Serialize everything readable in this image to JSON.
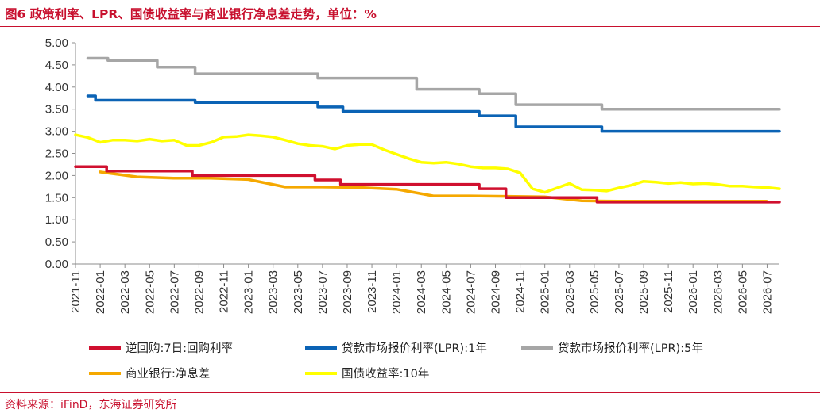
{
  "header": {
    "title": "图6 政策利率、LPR、国债收益率与商业银行净息差走势，单位：%"
  },
  "footer": {
    "source": "资料来源：iFinD，东海证券研究所"
  },
  "chart_data": {
    "type": "line",
    "title": "图6 政策利率、LPR、国债收益率与商业银行净息差走势，单位：%",
    "xlabel": "",
    "ylabel": "",
    "ylim": [
      0,
      5
    ],
    "yticks": [
      0,
      0.5,
      1,
      1.5,
      2,
      2.5,
      3,
      3.5,
      4,
      4.5,
      5
    ],
    "ytick_labels": [
      "0.00",
      "0.50",
      "1.00",
      "1.50",
      "2.00",
      "2.50",
      "3.00",
      "3.50",
      "4.00",
      "4.50",
      "5.00"
    ],
    "xlim": [
      "2021-11",
      "2026-08"
    ],
    "xtick_labels": [
      "2021-11",
      "2022-01",
      "2022-03",
      "2022-05",
      "2022-07",
      "2022-09",
      "2022-11",
      "2023-01",
      "2023-03",
      "2023-05",
      "2023-07",
      "2023-09",
      "2023-11",
      "2024-01",
      "2024-03",
      "2024-05",
      "2024-07",
      "2024-09",
      "2024-11",
      "2025-01",
      "2025-03",
      "2025-05",
      "2025-07",
      "2025-09",
      "2025-11",
      "2026-01",
      "2026-03",
      "2026-05",
      "2026-07"
    ],
    "grid": false,
    "legend_position": "bottom",
    "series": [
      {
        "name": "逆回购:7日:回购利率",
        "color": "#d0102f",
        "step": true,
        "points": [
          [
            "2021-11-01",
            2.2
          ],
          [
            "2022-01-17",
            2.1
          ],
          [
            "2022-08-15",
            2.0
          ],
          [
            "2023-06-13",
            1.9
          ],
          [
            "2023-08-15",
            1.8
          ],
          [
            "2024-07-22",
            1.7
          ],
          [
            "2024-09-27",
            1.5
          ],
          [
            "2025-05-08",
            1.4
          ],
          [
            "2026-08-01",
            1.4
          ]
        ]
      },
      {
        "name": "贷款市场报价利率(LPR):1年",
        "color": "#0b63b5",
        "step": true,
        "points": [
          [
            "2021-12-01",
            3.8
          ],
          [
            "2021-12-20",
            3.7
          ],
          [
            "2022-01-20",
            3.7
          ],
          [
            "2022-08-22",
            3.65
          ],
          [
            "2023-06-20",
            3.55
          ],
          [
            "2023-08-21",
            3.45
          ],
          [
            "2024-07-22",
            3.35
          ],
          [
            "2024-10-21",
            3.1
          ],
          [
            "2025-05-20",
            3.0
          ],
          [
            "2026-08-01",
            3.0
          ]
        ]
      },
      {
        "name": "贷款市场报价利率(LPR):5年",
        "color": "#a6a6a6",
        "step": true,
        "points": [
          [
            "2021-12-01",
            4.65
          ],
          [
            "2022-01-20",
            4.6
          ],
          [
            "2022-05-20",
            4.45
          ],
          [
            "2022-08-22",
            4.3
          ],
          [
            "2023-06-20",
            4.2
          ],
          [
            "2024-02-20",
            3.95
          ],
          [
            "2024-07-22",
            3.85
          ],
          [
            "2024-10-21",
            3.6
          ],
          [
            "2025-05-20",
            3.5
          ],
          [
            "2026-08-01",
            3.5
          ]
        ]
      },
      {
        "name": "商业银行:净息差",
        "color": "#f5a800",
        "step": false,
        "points": [
          [
            "2021-12-31",
            2.08
          ],
          [
            "2022-03-31",
            1.97
          ],
          [
            "2022-06-30",
            1.94
          ],
          [
            "2022-09-30",
            1.94
          ],
          [
            "2022-12-31",
            1.91
          ],
          [
            "2023-03-31",
            1.74
          ],
          [
            "2023-06-30",
            1.74
          ],
          [
            "2023-09-30",
            1.73
          ],
          [
            "2023-12-31",
            1.69
          ],
          [
            "2024-03-31",
            1.54
          ],
          [
            "2024-06-30",
            1.54
          ],
          [
            "2024-09-30",
            1.53
          ],
          [
            "2024-12-31",
            1.52
          ],
          [
            "2025-03-31",
            1.43
          ],
          [
            "2025-06-30",
            1.42
          ],
          [
            "2025-09-30",
            1.42
          ],
          [
            "2025-12-31",
            1.42
          ],
          [
            "2026-06-30",
            1.42
          ]
        ]
      },
      {
        "name": "国债收益率:10年",
        "color": "#ffff00",
        "step": false,
        "points": [
          [
            "2021-11-01",
            2.92
          ],
          [
            "2021-12-01",
            2.86
          ],
          [
            "2022-01-01",
            2.75
          ],
          [
            "2022-02-01",
            2.8
          ],
          [
            "2022-03-01",
            2.8
          ],
          [
            "2022-04-01",
            2.78
          ],
          [
            "2022-05-01",
            2.82
          ],
          [
            "2022-06-01",
            2.78
          ],
          [
            "2022-07-01",
            2.8
          ],
          [
            "2022-08-01",
            2.68
          ],
          [
            "2022-09-01",
            2.68
          ],
          [
            "2022-10-01",
            2.75
          ],
          [
            "2022-11-01",
            2.87
          ],
          [
            "2022-12-01",
            2.88
          ],
          [
            "2023-01-01",
            2.92
          ],
          [
            "2023-02-01",
            2.9
          ],
          [
            "2023-03-01",
            2.87
          ],
          [
            "2023-04-01",
            2.8
          ],
          [
            "2023-05-01",
            2.72
          ],
          [
            "2023-06-01",
            2.68
          ],
          [
            "2023-07-01",
            2.66
          ],
          [
            "2023-08-01",
            2.6
          ],
          [
            "2023-09-01",
            2.68
          ],
          [
            "2023-10-01",
            2.7
          ],
          [
            "2023-11-01",
            2.7
          ],
          [
            "2023-12-01",
            2.58
          ],
          [
            "2024-01-01",
            2.48
          ],
          [
            "2024-02-01",
            2.38
          ],
          [
            "2024-03-01",
            2.3
          ],
          [
            "2024-04-01",
            2.28
          ],
          [
            "2024-05-01",
            2.3
          ],
          [
            "2024-06-01",
            2.26
          ],
          [
            "2024-07-01",
            2.2
          ],
          [
            "2024-08-01",
            2.17
          ],
          [
            "2024-09-01",
            2.17
          ],
          [
            "2024-10-01",
            2.15
          ],
          [
            "2024-11-01",
            2.06
          ],
          [
            "2024-12-01",
            1.7
          ],
          [
            "2025-01-01",
            1.62
          ],
          [
            "2025-02-01",
            1.72
          ],
          [
            "2025-03-01",
            1.82
          ],
          [
            "2025-04-01",
            1.68
          ],
          [
            "2025-05-01",
            1.67
          ],
          [
            "2025-06-01",
            1.65
          ],
          [
            "2025-07-01",
            1.72
          ],
          [
            "2025-08-01",
            1.78
          ],
          [
            "2025-09-01",
            1.87
          ],
          [
            "2025-10-01",
            1.85
          ],
          [
            "2025-11-01",
            1.82
          ],
          [
            "2025-12-01",
            1.84
          ],
          [
            "2026-01-01",
            1.81
          ],
          [
            "2026-02-01",
            1.82
          ],
          [
            "2026-03-01",
            1.8
          ],
          [
            "2026-04-01",
            1.76
          ],
          [
            "2026-05-01",
            1.76
          ],
          [
            "2026-06-01",
            1.74
          ],
          [
            "2026-07-01",
            1.73
          ],
          [
            "2026-08-01",
            1.7
          ]
        ]
      }
    ],
    "legend_rows": [
      [
        0,
        1,
        2
      ],
      [
        3,
        4
      ]
    ]
  }
}
